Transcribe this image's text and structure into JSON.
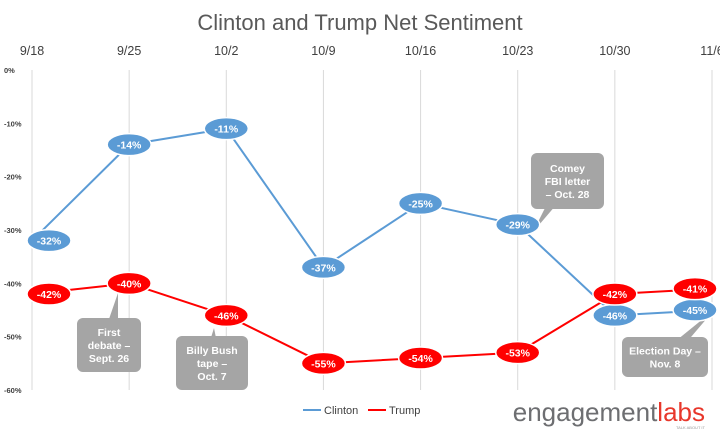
{
  "chart_data": {
    "type": "line",
    "title": "Clinton and Trump Net Sentiment",
    "categories": [
      "9/18",
      "9/25",
      "10/2",
      "10/9",
      "10/16",
      "10/23",
      "10/30",
      "11/6"
    ],
    "y_ticks": [
      "0%",
      "-10%",
      "-20%",
      "-30%",
      "-40%",
      "-50%",
      "-60%"
    ],
    "ylim": [
      -60,
      0
    ],
    "grid": "vertical",
    "legend_position": "bottom",
    "series": [
      {
        "name": "Clinton",
        "color": "#5B9BD5",
        "values": [
          -32,
          -14,
          -11,
          -37,
          -25,
          -29,
          -46,
          -45
        ],
        "labels": [
          "-32%",
          "-14%",
          "-11%",
          "-37%",
          "-25%",
          "-29%",
          "-46%",
          "-45%"
        ]
      },
      {
        "name": "Trump",
        "color": "#FF0000",
        "values": [
          -42,
          -40,
          -46,
          -55,
          -54,
          -53,
          -42,
          -41
        ],
        "labels": [
          "-42%",
          "-40%",
          "-46%",
          "-55%",
          "-54%",
          "-53%",
          "-42%",
          "-41%"
        ]
      }
    ],
    "annotations": [
      {
        "lines": [
          "Comey",
          "FBI letter",
          "– Oct. 28"
        ]
      },
      {
        "lines": [
          "First",
          "debate –",
          "Sept.  26"
        ]
      },
      {
        "lines": [
          "Billy Bush",
          "tape –",
          "Oct. 7"
        ]
      },
      {
        "lines": [
          "Election Day –",
          "Nov. 8"
        ]
      }
    ]
  },
  "brand": {
    "part1": "engagement",
    "part2": "labs",
    "tagline": "TALK ABOUT IT",
    "color1": "#6D6E71",
    "color2": "#E8372B"
  }
}
